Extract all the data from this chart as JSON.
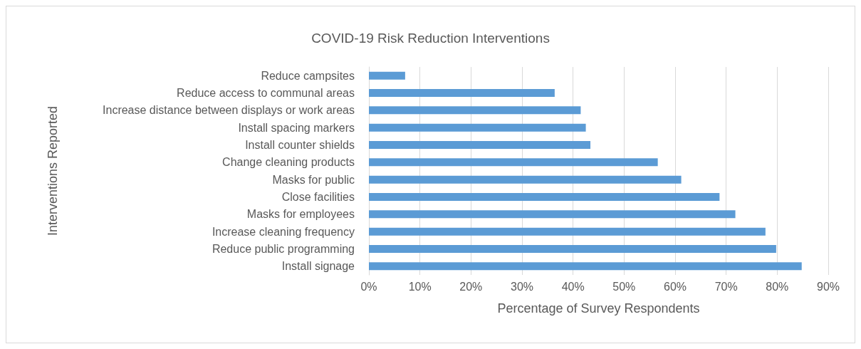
{
  "chart_data": {
    "type": "bar",
    "orientation": "horizontal",
    "title": "COVID-19 Risk Reduction Interventions",
    "xlabel": "Percentage of Survey Respondents",
    "ylabel": "Interventions Reported",
    "categories": [
      "Reduce campsites",
      "Reduce access to communal areas",
      "Increase distance between displays or work areas",
      "Install spacing markers",
      "Install counter shields",
      "Change cleaning products",
      "Masks for public",
      "Close facilities",
      "Masks for employees",
      "Increase cleaning frequency",
      "Reduce public programming",
      "Install signage"
    ],
    "values": [
      7.1,
      36.4,
      41.5,
      42.5,
      43.4,
      56.6,
      61.2,
      68.7,
      71.8,
      77.7,
      79.8,
      84.8
    ],
    "color": "#5b9bd5",
    "xlim": [
      0,
      90
    ],
    "xticks": [
      {
        "value": 0,
        "label": "0%"
      },
      {
        "value": 10,
        "label": "10%"
      },
      {
        "value": 20,
        "label": "20%"
      },
      {
        "value": 30,
        "label": "30%"
      },
      {
        "value": 40,
        "label": "40%"
      },
      {
        "value": 50,
        "label": "50%"
      },
      {
        "value": 60,
        "label": "60%"
      },
      {
        "value": 70,
        "label": "70%"
      },
      {
        "value": 80,
        "label": "80%"
      },
      {
        "value": 90,
        "label": "90%"
      }
    ],
    "grid": "x"
  }
}
